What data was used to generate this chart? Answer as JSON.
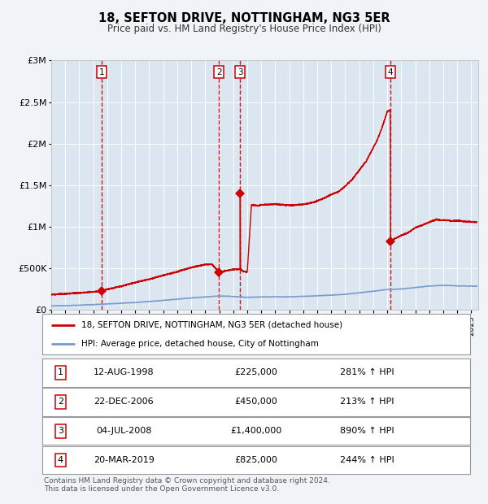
{
  "title": "18, SEFTON DRIVE, NOTTINGHAM, NG3 5ER",
  "subtitle": "Price paid vs. HM Land Registry's House Price Index (HPI)",
  "fig_bg": "#f0f4f8",
  "plot_bg": "#dce6f1",
  "purchases": [
    {
      "num": 1,
      "date_str": "12-AUG-1998",
      "year": 1998.62,
      "price": 225000,
      "hpi_pct": "281% ↑ HPI"
    },
    {
      "num": 2,
      "date_str": "22-DEC-2006",
      "year": 2006.98,
      "price": 450000,
      "hpi_pct": "213% ↑ HPI"
    },
    {
      "num": 3,
      "date_str": "04-JUL-2008",
      "year": 2008.5,
      "price": 1400000,
      "hpi_pct": "890% ↑ HPI"
    },
    {
      "num": 4,
      "date_str": "20-MAR-2019",
      "year": 2019.22,
      "price": 825000,
      "hpi_pct": "244% ↑ HPI"
    }
  ],
  "xmin": 1995,
  "xmax": 2025.5,
  "ymin": 0,
  "ymax": 3000000,
  "yticks": [
    0,
    500000,
    1000000,
    1500000,
    2000000,
    2500000,
    3000000
  ],
  "ytick_labels": [
    "£0",
    "£500K",
    "£1M",
    "£1.5M",
    "£2M",
    "£2.5M",
    "£3M"
  ],
  "red_color": "#cc0000",
  "blue_color": "#7799cc",
  "grid_color": "#ffffff",
  "legend1": "18, SEFTON DRIVE, NOTTINGHAM, NG3 5ER (detached house)",
  "legend2": "HPI: Average price, detached house, City of Nottingham",
  "footer": "Contains HM Land Registry data © Crown copyright and database right 2024.\nThis data is licensed under the Open Government Licence v3.0."
}
